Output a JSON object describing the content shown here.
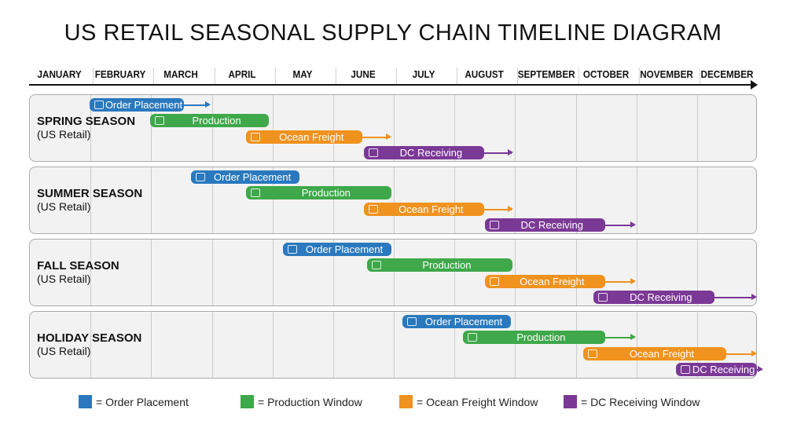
{
  "title": "US RETAIL SEASONAL SUPPLY CHAIN TIMELINE DIAGRAM",
  "months": [
    "JANUARY",
    "FEBRUARY",
    "MARCH",
    "APRIL",
    "MAY",
    "JUNE",
    "JULY",
    "AUGUST",
    "SEPTEMBER",
    "OCTOBER",
    "NOVEMBER",
    "DECEMBER"
  ],
  "colors": {
    "order": "#2a79be",
    "production": "#3ea84a",
    "freight": "#f0921e",
    "receiving": "#7b3996"
  },
  "phase_labels": {
    "order": "Order Placement",
    "production": "Production",
    "freight": "Ocean Freight",
    "receiving": "DC Receiving"
  },
  "seasons": [
    {
      "name": "SPRING SEASON",
      "sub": "(US Retail)",
      "bars": [
        {
          "phase": "order",
          "start": 1.0,
          "end": 2.55,
          "arrow_to": 3.0
        },
        {
          "phase": "production",
          "start": 2.0,
          "end": 3.95
        },
        {
          "phase": "freight",
          "start": 3.58,
          "end": 5.5,
          "arrow_to": 5.98
        },
        {
          "phase": "receiving",
          "start": 5.52,
          "end": 7.5,
          "arrow_to": 7.98
        }
      ]
    },
    {
      "name": "SUMMER SEASON",
      "sub": "(US Retail)",
      "bars": [
        {
          "phase": "order",
          "start": 2.67,
          "end": 4.46
        },
        {
          "phase": "production",
          "start": 3.58,
          "end": 5.98
        },
        {
          "phase": "freight",
          "start": 5.52,
          "end": 7.5,
          "arrow_to": 7.98
        },
        {
          "phase": "receiving",
          "start": 7.51,
          "end": 9.5,
          "arrow_to": 10.0
        }
      ]
    },
    {
      "name": "FALL SEASON",
      "sub": "(US Retail)",
      "bars": [
        {
          "phase": "order",
          "start": 4.18,
          "end": 5.98
        },
        {
          "phase": "production",
          "start": 5.57,
          "end": 7.97
        },
        {
          "phase": "freight",
          "start": 7.51,
          "end": 9.5,
          "arrow_to": 10.0
        },
        {
          "phase": "receiving",
          "start": 9.3,
          "end": 11.3,
          "arrow_to": 12.0
        }
      ]
    },
    {
      "name": "HOLIDAY SEASON",
      "sub": "(US Retail)",
      "bars": [
        {
          "phase": "order",
          "start": 6.15,
          "end": 7.95
        },
        {
          "phase": "production",
          "start": 7.15,
          "end": 9.5,
          "arrow_to": 10.0
        },
        {
          "phase": "freight",
          "start": 9.13,
          "end": 11.5,
          "arrow_to": 12.0
        },
        {
          "phase": "receiving",
          "start": 10.67,
          "end": 12.0,
          "arrow_to": 12.1
        }
      ]
    }
  ],
  "legend": [
    {
      "phase": "order",
      "label": "= Order Placement"
    },
    {
      "phase": "production",
      "label": "= Production Window"
    },
    {
      "phase": "freight",
      "label": "= Ocean Freight Window"
    },
    {
      "phase": "receiving",
      "label": "= DC Receiving Window"
    }
  ]
}
